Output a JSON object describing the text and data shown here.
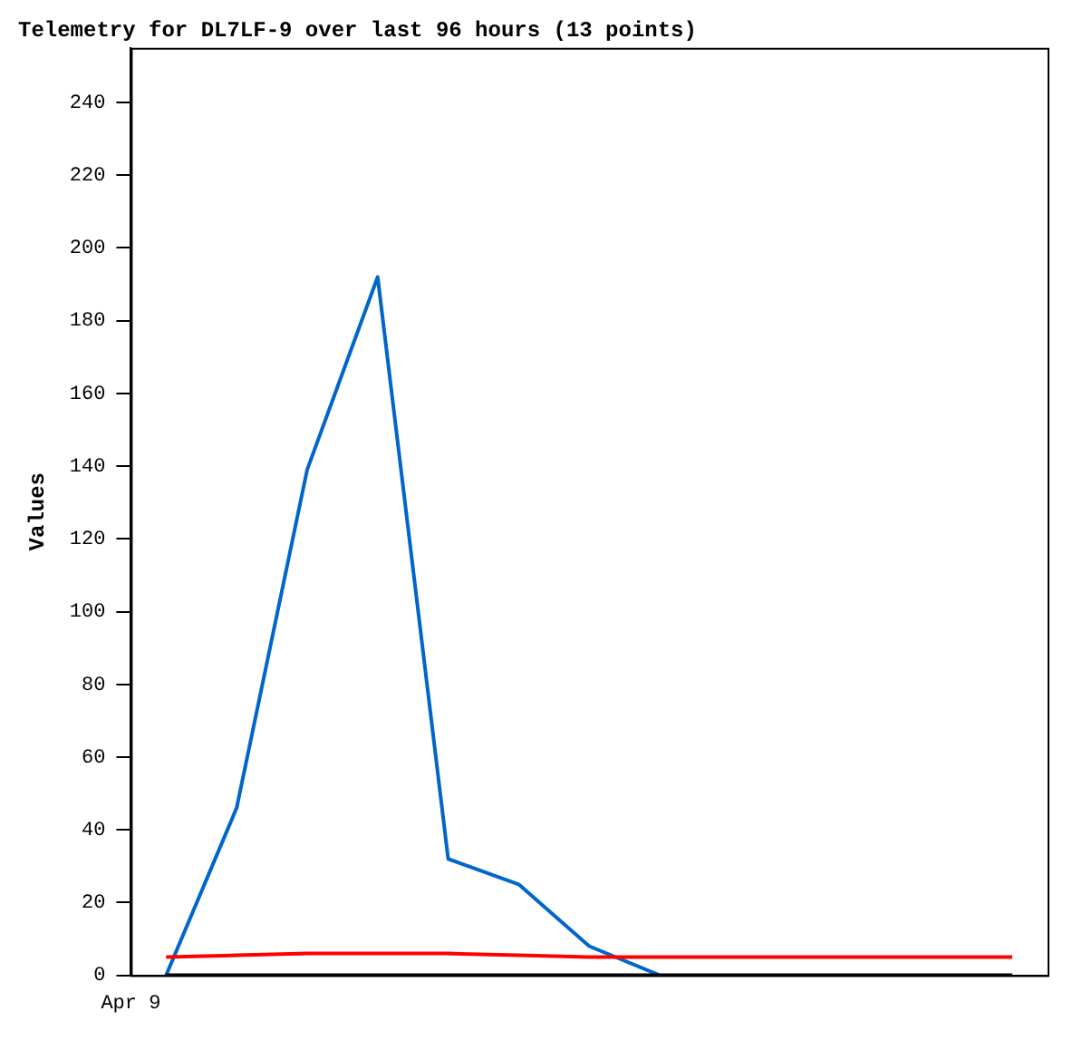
{
  "chart_data": {
    "type": "line",
    "title": "Telemetry for DL7LF-9 over last 96 hours (13 points)",
    "ylabel": "Values",
    "categories": [
      null,
      null,
      null,
      null,
      null,
      null,
      null,
      null,
      null,
      null,
      null,
      null,
      null
    ],
    "annotations": [
      "Apr 9"
    ],
    "ylim": [
      0,
      255
    ],
    "yticks": [
      0,
      20,
      40,
      60,
      80,
      100,
      120,
      140,
      160,
      180,
      200,
      220,
      240
    ],
    "series": [
      {
        "color": "#000000",
        "values": [
          0,
          0,
          0,
          0,
          0,
          0,
          0,
          0,
          0,
          0,
          0,
          0,
          0
        ]
      },
      {
        "color": "#ff0000",
        "values": [
          5,
          5.5,
          6,
          6,
          6,
          5.5,
          5,
          5,
          5,
          5,
          5,
          5,
          5
        ]
      },
      {
        "color": "#0066cc",
        "values": [
          0,
          46,
          139,
          192,
          32,
          25,
          8,
          0,
          null,
          null,
          null,
          null,
          null
        ]
      }
    ],
    "grid": false,
    "legend": false,
    "marker": "none",
    "line_style": "solid"
  }
}
